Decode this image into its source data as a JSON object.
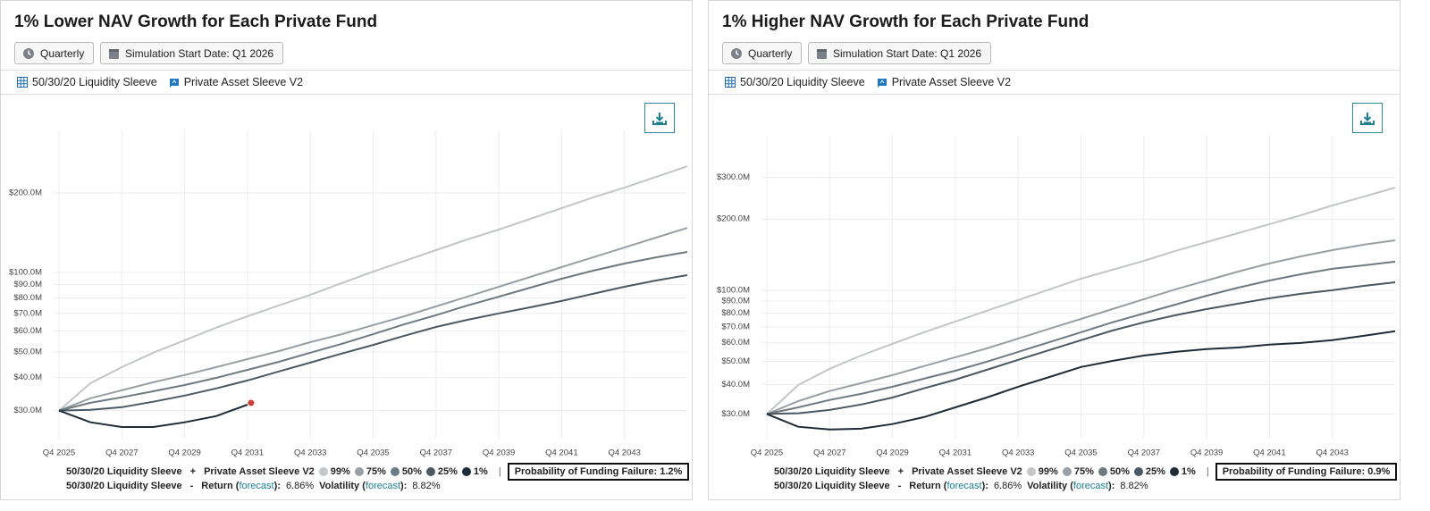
{
  "panels": [
    {
      "buttons": [
        "Quarterly",
        "Simulation Start Date: Q1 2026"
      ],
      "tags": [
        "50/30/20 Liquidity Sleeve",
        "Private Asset Sleeve V2"
      ],
      "legend": {
        "first": "50/30/20 Liquidity Sleeve",
        "plus": "+",
        "second": "Private Asset Sleeve V2",
        "divider": "|",
        "probability": "Probability of Funding Failure: 1.2%"
      },
      "stats": {
        "name": "50/30/20 Liquidity Sleeve",
        "dash": "-",
        "return_prefix": "Return (",
        "return_link": "forecast",
        "return_suffix": "):",
        "return_value": "6.86%",
        "volatility_prefix": "Volatility (",
        "volatility_link": "forecast",
        "volatility_suffix": "):",
        "volatility_value": "8.82%"
      }
    },
    {
      "buttons": [
        "Quarterly",
        "Simulation Start Date: Q1 2026"
      ],
      "tags": [
        "50/30/20 Liquidity Sleeve",
        "Private Asset Sleeve V2"
      ],
      "legend": {
        "first": "50/30/20 Liquidity Sleeve",
        "plus": "+",
        "second": "Private Asset Sleeve V2",
        "divider": "|",
        "probability": "Probability of Funding Failure: 0.9%"
      },
      "stats": {
        "name": "50/30/20 Liquidity Sleeve",
        "dash": "-",
        "return_prefix": "Return (",
        "return_link": "forecast",
        "return_suffix": "):",
        "return_value": "6.86%",
        "volatility_prefix": "Volatility (",
        "volatility_link": "forecast",
        "volatility_suffix": "):",
        "volatility_value": "8.82%"
      }
    }
  ],
  "chart_data": [
    {
      "type": "line",
      "title": "1% Lower NAV Growth for Each Private Fund",
      "log_scale": true,
      "grid": true,
      "failure_marker_color": "#c8403a",
      "categories": [
        "Q4 2025",
        null,
        "Q4 2027",
        null,
        "Q4 2029",
        null,
        "Q4 2031",
        null,
        "Q4 2033",
        null,
        "Q4 2035",
        null,
        "Q4 2037",
        null,
        "Q4 2039",
        null,
        "Q4 2041",
        null,
        "Q4 2043",
        null,
        null
      ],
      "ylim": [
        23.5,
        319
      ],
      "yticks": [
        {
          "value": 30,
          "label": "$30.0M"
        },
        {
          "value": 40,
          "label": "$40.0M"
        },
        {
          "value": 50,
          "label": "$50.0M"
        },
        {
          "value": 60,
          "label": "$60.0M"
        },
        {
          "value": 70,
          "label": "$70.0M"
        },
        {
          "value": 80,
          "label": "$80.0M"
        },
        {
          "value": 90,
          "label": "$90.0M"
        },
        {
          "value": 100,
          "label": "$100.0M"
        },
        {
          "value": 200,
          "label": "$200.0M"
        }
      ],
      "series": [
        {
          "name": "99%",
          "color": "#c3c6c9",
          "values": [
            30,
            38.1,
            43.8,
            49.7,
            55.4,
            61.8,
            68.3,
            75.0,
            82.3,
            91.1,
            100.8,
            110.6,
            121.5,
            133.4,
            145.3,
            159.5,
            175.1,
            192.2,
            209.4,
            229.8,
            252.3
          ]
        },
        {
          "name": "75%",
          "color": "#98a0a5",
          "values": [
            30,
            33.4,
            35.8,
            38.4,
            40.9,
            43.8,
            47.0,
            50.4,
            54.5,
            58.4,
            63.2,
            68.3,
            74.4,
            81.0,
            88.3,
            96.2,
            104.8,
            114.1,
            124.3,
            135.5,
            147.5
          ]
        },
        {
          "name": "50%",
          "color": "#6e7a81",
          "values": [
            30,
            32.1,
            33.7,
            35.5,
            37.5,
            39.9,
            42.8,
            45.9,
            49.7,
            53.7,
            58.4,
            63.7,
            68.9,
            75.0,
            81.0,
            87.6,
            94.7,
            101.6,
            108.1,
            114.1,
            119.6
          ]
        },
        {
          "name": "25%",
          "color": "#4a5962",
          "values": [
            30,
            30.2,
            30.9,
            32.4,
            34.2,
            36.4,
            39.0,
            42.2,
            45.6,
            49.3,
            53.2,
            57.6,
            62.2,
            66.2,
            70.0,
            73.8,
            78.0,
            83.0,
            88.3,
            93.2,
            97.7
          ]
        },
        {
          "name": "1%",
          "color": "#1e2c37",
          "values": [
            30,
            27.1,
            26.0,
            26.0,
            27.1,
            28.6,
            31.6,
            null,
            null,
            null,
            null,
            null,
            null,
            null,
            null,
            null,
            null,
            null,
            null,
            null,
            null
          ]
        }
      ]
    },
    {
      "type": "line",
      "title": "1% Higher NAV Growth for Each Private Fund",
      "log_scale": true,
      "grid": true,
      "categories": [
        "Q4 2025",
        null,
        "Q4 2027",
        null,
        "Q4 2029",
        null,
        "Q4 2031",
        null,
        "Q4 2033",
        null,
        "Q4 2035",
        null,
        "Q4 2037",
        null,
        "Q4 2039",
        null,
        "Q4 2041",
        null,
        "Q4 2043",
        null,
        null
      ],
      "ylim": [
        23.6,
        416
      ],
      "yticks": [
        {
          "value": 30,
          "label": "$30.0M"
        },
        {
          "value": 40,
          "label": "$40.0M"
        },
        {
          "value": 50,
          "label": "$50.0M"
        },
        {
          "value": 60,
          "label": "$60.0M"
        },
        {
          "value": 70,
          "label": "$70.0M"
        },
        {
          "value": 80,
          "label": "$80.0M"
        },
        {
          "value": 90,
          "label": "$90.0M"
        },
        {
          "value": 100,
          "label": "$100.0M"
        },
        {
          "value": 200,
          "label": "$200.0M"
        },
        {
          "value": 300,
          "label": "$300.0M"
        }
      ],
      "series": [
        {
          "name": "99%",
          "color": "#c3c6c9",
          "values": [
            30,
            39.8,
            46.6,
            53.0,
            59.4,
            66.5,
            73.8,
            81.9,
            90.9,
            100.9,
            112.0,
            122.1,
            133.2,
            146.6,
            159.9,
            174.4,
            190.3,
            207.5,
            228.4,
            248.9,
            271.6
          ]
        },
        {
          "name": "75%",
          "color": "#98a0a5",
          "values": [
            30,
            34.0,
            37.5,
            40.5,
            43.8,
            47.8,
            52.1,
            56.8,
            62.5,
            68.8,
            75.7,
            83.3,
            91.7,
            100.9,
            110.0,
            120.0,
            129.8,
            139.1,
            147.8,
            155.8,
            162.7
          ]
        },
        {
          "name": "50%",
          "color": "#6e7a81",
          "values": [
            30,
            32.0,
            34.4,
            36.5,
            39.1,
            42.3,
            45.7,
            49.9,
            54.9,
            60.4,
            66.5,
            73.2,
            79.8,
            87.0,
            94.9,
            102.6,
            110.0,
            116.9,
            123.2,
            127.5,
            132.1
          ]
        },
        {
          "name": "25%",
          "color": "#4a5962",
          "values": [
            30,
            30.2,
            31.2,
            32.9,
            35.2,
            38.5,
            41.9,
            46.1,
            50.8,
            55.9,
            61.5,
            67.6,
            73.2,
            78.4,
            83.3,
            87.8,
            92.5,
            96.6,
            100.0,
            104.4,
            108.1
          ]
        },
        {
          "name": "1%",
          "color": "#1e2c37",
          "values": [
            30,
            26.5,
            25.8,
            26.0,
            27.2,
            29.1,
            32.0,
            35.2,
            39.1,
            43.0,
            47.4,
            50.3,
            53.0,
            54.9,
            56.4,
            57.3,
            58.9,
            59.9,
            61.5,
            64.2,
            67.1
          ]
        }
      ]
    }
  ]
}
